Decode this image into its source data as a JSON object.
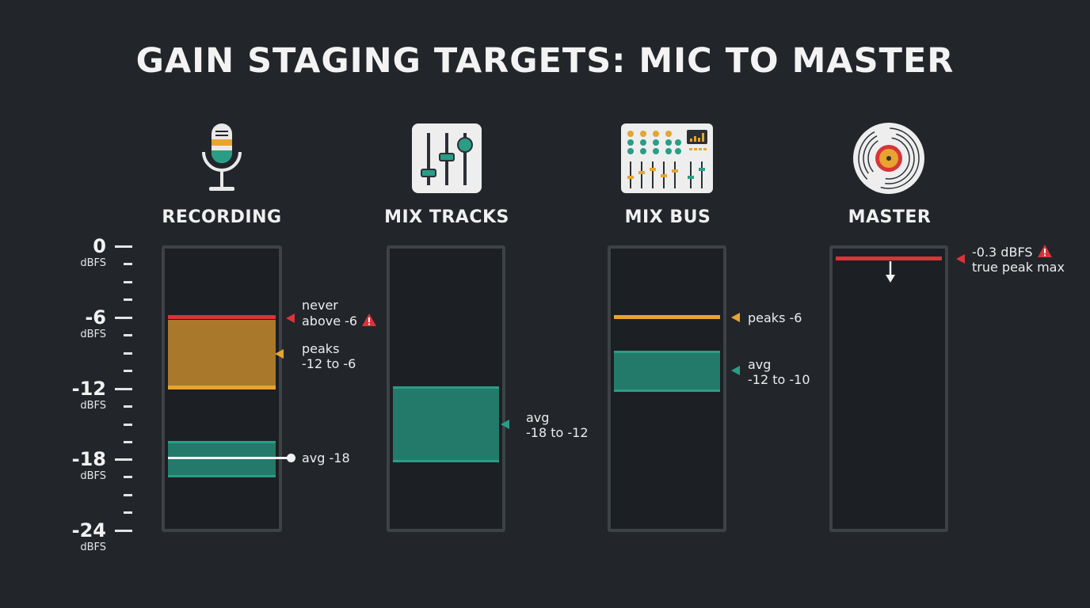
{
  "title": "GAIN STAGING TARGETS: MIC TO MASTER",
  "scale": {
    "unit": "dBFS",
    "labels": [
      "0",
      "-6",
      "-12",
      "-18",
      "-24"
    ]
  },
  "stages": [
    {
      "name": "RECORDING",
      "icon": "microphone-icon",
      "annotations": {
        "never_line1": "never",
        "never_line2": "above -6",
        "peaks_line1": "peaks",
        "peaks_line2": "-12 to -6",
        "avg": "avg -18"
      }
    },
    {
      "name": "MIX TRACKS",
      "icon": "faders-icon",
      "annotations": {
        "avg_line1": "avg",
        "avg_line2": "-18 to -12"
      }
    },
    {
      "name": "MIX BUS",
      "icon": "mixing-console-icon",
      "annotations": {
        "peaks": "peaks -6",
        "avg_line1": "avg",
        "avg_line2": "-12 to -10"
      }
    },
    {
      "name": "MASTER",
      "icon": "vinyl-record-icon",
      "annotations": {
        "ceiling_line1": "-0.3 dBFS",
        "ceiling_line2": "true peak max"
      }
    }
  ],
  "colors": {
    "background": "#22262b",
    "red_limit": "#d8343a",
    "peak_orange": "#e7a52f",
    "peak_zone": "#a9782a",
    "avg_teal": "#2a9d86",
    "avg_zone": "#237a6a"
  }
}
